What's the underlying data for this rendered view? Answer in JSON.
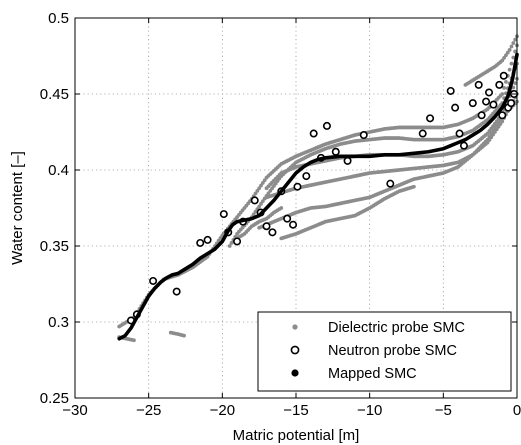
{
  "chart_data": {
    "type": "scatter",
    "title": "",
    "xlabel": "Matric potential [m]",
    "ylabel": "Water content [–]",
    "xlim": [
      -30,
      0
    ],
    "ylim": [
      0.25,
      0.5
    ],
    "x_ticks": [
      -30,
      -25,
      -20,
      -15,
      -10,
      -5,
      0
    ],
    "x_tick_labels": [
      "−30",
      "−25",
      "−20",
      "−15",
      "−10",
      "−5",
      "0"
    ],
    "y_ticks": [
      0.25,
      0.3,
      0.35,
      0.4,
      0.45,
      0.5
    ],
    "y_tick_labels": [
      "0.25",
      "0.3",
      "0.35",
      "0.4",
      "0.45",
      "0.5"
    ],
    "grid": true,
    "legend_position": "bottom-right",
    "series": [
      {
        "name": "Dielectric probe SMC",
        "marker": "dot",
        "color": "#8c8c8c",
        "segments": [
          [
            [
              -27.0,
              0.297
            ],
            [
              -26.0,
              0.303
            ],
            [
              -25.0,
              0.318
            ],
            [
              -24.0,
              0.328
            ],
            [
              -23.0,
              0.331
            ],
            [
              -22.0,
              0.336
            ],
            [
              -21.0,
              0.343
            ],
            [
              -20.0,
              0.357
            ],
            [
              -19.0,
              0.369
            ],
            [
              -18.0,
              0.381
            ],
            [
              -17.0,
              0.395
            ],
            [
              -16.0,
              0.404
            ],
            [
              -15.0,
              0.409
            ],
            [
              -14.0,
              0.413
            ],
            [
              -13.0,
              0.417
            ],
            [
              -12.0,
              0.42
            ],
            [
              -11.0,
              0.423
            ],
            [
              -10.0,
              0.425
            ],
            [
              -9.0,
              0.427
            ],
            [
              -8.0,
              0.428
            ],
            [
              -7.0,
              0.428
            ],
            [
              -6.0,
              0.428
            ],
            [
              -5.0,
              0.428
            ],
            [
              -4.0,
              0.43
            ],
            [
              -3.0,
              0.434
            ],
            [
              -2.0,
              0.44
            ],
            [
              -1.0,
              0.45
            ],
            [
              0.0,
              0.482
            ]
          ],
          [
            [
              -19.5,
              0.35
            ],
            [
              -19.0,
              0.358
            ],
            [
              -18.0,
              0.369
            ],
            [
              -17.0,
              0.383
            ],
            [
              -16.0,
              0.396
            ],
            [
              -15.0,
              0.405
            ],
            [
              -14.0,
              0.41
            ],
            [
              -13.0,
              0.414
            ],
            [
              -12.0,
              0.417
            ],
            [
              -11.0,
              0.419
            ],
            [
              -10.0,
              0.42
            ],
            [
              -9.0,
              0.421
            ],
            [
              -8.0,
              0.421
            ],
            [
              -7.0,
              0.42
            ],
            [
              -6.0,
              0.42
            ],
            [
              -5.0,
              0.42
            ],
            [
              -4.0,
              0.422
            ],
            [
              -3.0,
              0.426
            ],
            [
              -2.0,
              0.433
            ],
            [
              -1.0,
              0.444
            ],
            [
              0.0,
              0.47
            ]
          ],
          [
            [
              -17.0,
              0.388
            ],
            [
              -16.0,
              0.398
            ],
            [
              -15.0,
              0.402
            ],
            [
              -14.0,
              0.404
            ],
            [
              -13.0,
              0.406
            ],
            [
              -12.0,
              0.408
            ],
            [
              -11.0,
              0.409
            ],
            [
              -10.0,
              0.41
            ],
            [
              -9.0,
              0.41
            ],
            [
              -8.0,
              0.41
            ],
            [
              -7.0,
              0.409
            ],
            [
              -6.0,
              0.409
            ],
            [
              -5.0,
              0.41
            ],
            [
              -4.0,
              0.412
            ],
            [
              -3.0,
              0.416
            ],
            [
              -2.0,
              0.424
            ],
            [
              -1.0,
              0.437
            ],
            [
              0.0,
              0.46
            ]
          ],
          [
            [
              -17.0,
              0.382
            ],
            [
              -16.0,
              0.385
            ],
            [
              -15.0,
              0.388
            ],
            [
              -14.0,
              0.39
            ],
            [
              -13.0,
              0.392
            ],
            [
              -12.0,
              0.394
            ],
            [
              -11.0,
              0.396
            ],
            [
              -10.0,
              0.398
            ],
            [
              -9.0,
              0.399
            ],
            [
              -8.0,
              0.4
            ],
            [
              -7.0,
              0.401
            ],
            [
              -6.0,
              0.402
            ],
            [
              -5.0,
              0.403
            ],
            [
              -4.0,
              0.405
            ],
            [
              -3.0,
              0.41
            ],
            [
              -2.0,
              0.418
            ],
            [
              -1.0,
              0.432
            ],
            [
              0.0,
              0.45
            ]
          ],
          [
            [
              -17.5,
              0.362
            ],
            [
              -17.0,
              0.364
            ],
            [
              -16.0,
              0.368
            ],
            [
              -15.0,
              0.372
            ],
            [
              -14.0,
              0.375
            ],
            [
              -13.0,
              0.376
            ],
            [
              -12.0,
              0.378
            ],
            [
              -11.0,
              0.38
            ],
            [
              -10.0,
              0.382
            ],
            [
              -9.0,
              0.386
            ],
            [
              -8.0,
              0.39
            ],
            [
              -7.0,
              0.394
            ],
            [
              -6.0,
              0.396
            ],
            [
              -5.0,
              0.398
            ],
            [
              -4.0,
              0.402
            ],
            [
              -3.0,
              0.41
            ],
            [
              -2.0,
              0.42
            ],
            [
              -1.0,
              0.435
            ],
            [
              0.0,
              0.445
            ]
          ],
          [
            [
              -16.0,
              0.355
            ],
            [
              -15.0,
              0.358
            ],
            [
              -14.0,
              0.362
            ],
            [
              -13.0,
              0.366
            ],
            [
              -12.0,
              0.368
            ],
            [
              -11.0,
              0.37
            ],
            [
              -10.0,
              0.375
            ],
            [
              -9.0,
              0.381
            ],
            [
              -8.0,
              0.386
            ],
            [
              -7.0,
              0.389
            ]
          ],
          [
            [
              -19.0,
              0.355
            ],
            [
              -18.5,
              0.358
            ],
            [
              -18.0,
              0.363
            ],
            [
              -17.5,
              0.366
            ],
            [
              -17.0,
              0.368
            ],
            [
              -16.5,
              0.372
            ],
            [
              -16.0,
              0.375
            ]
          ],
          [
            [
              -3.5,
              0.456
            ],
            [
              -3.0,
              0.459
            ],
            [
              -2.5,
              0.462
            ],
            [
              -2.0,
              0.465
            ],
            [
              -1.5,
              0.468
            ],
            [
              -1.0,
              0.472
            ],
            [
              -0.5,
              0.479
            ],
            [
              0.0,
              0.488
            ]
          ],
          [
            [
              -27.0,
              0.29
            ],
            [
              -26.5,
              0.289
            ],
            [
              -26.0,
              0.288
            ]
          ],
          [
            [
              -23.5,
              0.293
            ],
            [
              -23.0,
              0.292
            ],
            [
              -22.6,
              0.291
            ]
          ]
        ]
      },
      {
        "name": "Neutron probe SMC",
        "marker": "open-circle",
        "color": "#000000",
        "points": [
          [
            -26.2,
            0.301
          ],
          [
            -25.8,
            0.305
          ],
          [
            -24.7,
            0.327
          ],
          [
            -23.1,
            0.32
          ],
          [
            -21.5,
            0.352
          ],
          [
            -21.0,
            0.354
          ],
          [
            -19.9,
            0.371
          ],
          [
            -19.6,
            0.359
          ],
          [
            -19.0,
            0.353
          ],
          [
            -18.6,
            0.366
          ],
          [
            -17.8,
            0.38
          ],
          [
            -17.4,
            0.372
          ],
          [
            -17.0,
            0.363
          ],
          [
            -16.6,
            0.359
          ],
          [
            -16.0,
            0.386
          ],
          [
            -15.6,
            0.368
          ],
          [
            -15.2,
            0.364
          ],
          [
            -14.9,
            0.389
          ],
          [
            -14.3,
            0.396
          ],
          [
            -13.8,
            0.424
          ],
          [
            -13.3,
            0.408
          ],
          [
            -12.9,
            0.429
          ],
          [
            -12.3,
            0.412
          ],
          [
            -11.5,
            0.406
          ],
          [
            -10.4,
            0.423
          ],
          [
            -8.6,
            0.391
          ],
          [
            -6.4,
            0.424
          ],
          [
            -5.9,
            0.434
          ],
          [
            -4.5,
            0.452
          ],
          [
            -4.2,
            0.441
          ],
          [
            -3.9,
            0.424
          ],
          [
            -3.6,
            0.416
          ],
          [
            -3.0,
            0.444
          ],
          [
            -2.6,
            0.456
          ],
          [
            -2.4,
            0.436
          ],
          [
            -2.1,
            0.445
          ],
          [
            -1.9,
            0.451
          ],
          [
            -1.6,
            0.443
          ],
          [
            -1.2,
            0.456
          ],
          [
            -1.0,
            0.436
          ],
          [
            -0.9,
            0.462
          ],
          [
            -0.6,
            0.441
          ],
          [
            -0.4,
            0.444
          ],
          [
            -0.2,
            0.45
          ]
        ]
      },
      {
        "name": "Mapped SMC",
        "marker": "line",
        "color": "#000000",
        "x": [
          -27.0,
          -26.6,
          -26.2,
          -25.8,
          -25.4,
          -25.0,
          -24.6,
          -24.2,
          -23.8,
          -23.4,
          -23.0,
          -22.5,
          -22.0,
          -21.5,
          -21.0,
          -20.5,
          -20.0,
          -19.6,
          -19.3,
          -19.0,
          -18.5,
          -18.0,
          -17.5,
          -17.0,
          -16.5,
          -16.0,
          -15.5,
          -15.0,
          -14.5,
          -14.0,
          -13.5,
          -13.0,
          -12.0,
          -11.0,
          -10.0,
          -9.0,
          -8.0,
          -7.0,
          -6.0,
          -5.0,
          -4.5,
          -4.0,
          -3.5,
          -3.0,
          -2.5,
          -2.0,
          -1.5,
          -1.0,
          -0.6,
          -0.3,
          0.0
        ],
        "y": [
          0.289,
          0.291,
          0.296,
          0.303,
          0.31,
          0.317,
          0.322,
          0.326,
          0.329,
          0.331,
          0.332,
          0.335,
          0.338,
          0.342,
          0.345,
          0.348,
          0.353,
          0.36,
          0.364,
          0.366,
          0.367,
          0.368,
          0.37,
          0.375,
          0.38,
          0.386,
          0.392,
          0.398,
          0.402,
          0.405,
          0.407,
          0.408,
          0.409,
          0.409,
          0.409,
          0.41,
          0.41,
          0.411,
          0.412,
          0.414,
          0.416,
          0.418,
          0.42,
          0.423,
          0.426,
          0.43,
          0.435,
          0.441,
          0.449,
          0.46,
          0.476
        ]
      }
    ]
  }
}
